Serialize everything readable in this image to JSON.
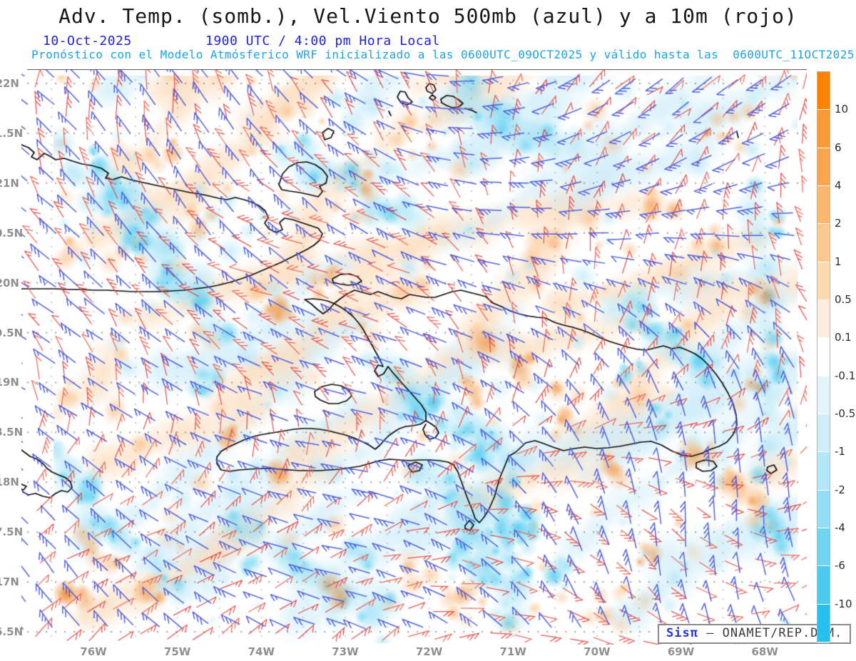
{
  "header": {
    "title": "Adv. Temp. (somb.), Vel.Viento 500mb (azul) y a 10m (rojo)",
    "date": "10-Oct-2025",
    "time": "1900 UTC / 4:00 pm Hora Local",
    "model_line": "Pronóstico con el Modelo Atmósferico WRF inicializado a las 0600UTC_09OCT2025 y válido hasta las  0600UTC_11OCT2025"
  },
  "attribution": {
    "brand": "Sisπ",
    "org_text": "— ONAMET/REP.DOM."
  },
  "colors": {
    "title_text": "#161616",
    "date_text": "#1d1dee",
    "model_text": "#1ba4e3",
    "axis_label": "#8f8f8f",
    "wind_500mb": "#4a5ade",
    "wind_10m": "#ee6152",
    "coastline": "#0d0d0d",
    "grid_dots": "#8c8c8c",
    "attribution_brand": "#2736d8"
  },
  "chart_data": {
    "type": "heatmap",
    "title": "Adv. Temp. (somb.), Vel.Viento 500mb (azul) y a 10m (rojo)",
    "subtitle_date": "10-Oct-2025",
    "subtitle_time": "1900 UTC / 4:00 pm Hora Local",
    "model_note": "Pronóstico con el Modelo Atmósferico WRF inicializado a las 0600UTC_09OCT2025 y válido hasta las 0600UTC_11OCT2025",
    "shaded_variable": "Advección de temperatura (sombreado)",
    "wind_series": [
      {
        "name": "Vel.Viento 500mb",
        "color_name": "azul",
        "color": "#4a5ade",
        "style": "wind-barbs"
      },
      {
        "name": "Vel.Viento a 10m",
        "color_name": "rojo",
        "color": "#ee6152",
        "style": "wind-barbs"
      }
    ],
    "x_axis": {
      "label": "longitude",
      "tick_labels": [
        "76W",
        "75W",
        "74W",
        "73W",
        "72W",
        "71W",
        "70W",
        "69W",
        "68W"
      ]
    },
    "y_axis": {
      "label": "latitude",
      "tick_labels": [
        "22N",
        "1.5N",
        "21N",
        "0.5N",
        "20N",
        "9.5N",
        "19N",
        "8.5N",
        "18N",
        "7.5N",
        "17N",
        "6.5N"
      ]
    },
    "grid": "dotted",
    "legend_position": "right",
    "colorbar": {
      "tick_labels": [
        "10",
        "6",
        "4",
        "2",
        "1",
        "0.5",
        "0.1",
        "-0.1",
        "-0.5",
        "-1",
        "-2",
        "-4",
        "-6",
        "-10"
      ],
      "segment_colors": [
        "#FB8303",
        "#F99A36",
        "#F9A54F",
        "#FAB76D",
        "#FCC88E",
        "#FCD9AF",
        "#FEEDDC",
        "#FFFFFF",
        "#E3F4FB",
        "#CFEDF9",
        "#B3E6F7",
        "#93DDF5",
        "#70D3F2",
        "#4ACAF0",
        "#27C0EE"
      ]
    },
    "map_region": "Cuba / Jamaica / Hispaniola / Turks & Caicos (Caribbean)"
  }
}
